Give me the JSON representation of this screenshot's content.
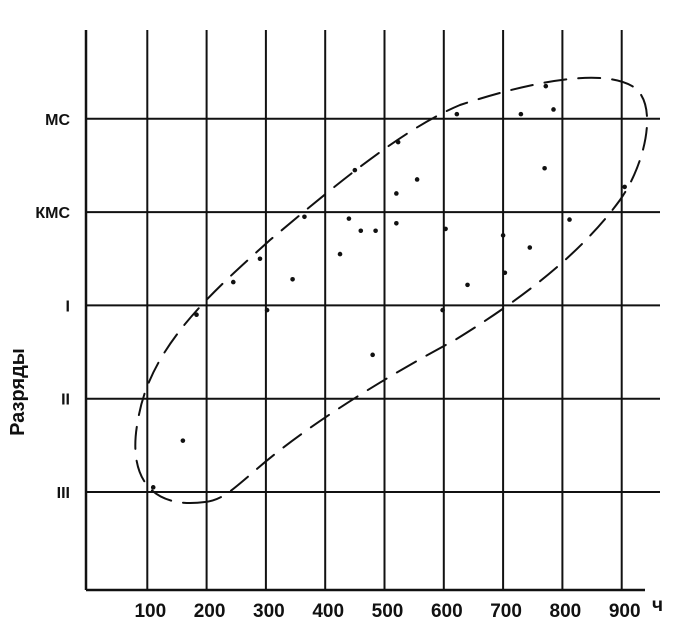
{
  "chart_data": {
    "type": "scatter",
    "title": "",
    "xlabel": "",
    "x_unit": "ч",
    "ylabel": "Разряды",
    "x_ticks": [
      100,
      200,
      300,
      400,
      500,
      600,
      700,
      800,
      900
    ],
    "x_tick_labels": [
      "100",
      "200",
      "300",
      "400",
      "500",
      "600",
      "700",
      "800",
      "900"
    ],
    "y_categories": [
      "III",
      "II",
      "I",
      "КМС",
      "МС"
    ],
    "xlim": [
      0,
      1000
    ],
    "ylim": [
      -1,
      4.2
    ],
    "grid": true,
    "points": [
      {
        "x": 160,
        "y": 0.55
      },
      {
        "x": 110,
        "y": 0.05
      },
      {
        "x": 183,
        "y": 1.9
      },
      {
        "x": 245,
        "y": 2.25
      },
      {
        "x": 290,
        "y": 2.5
      },
      {
        "x": 302,
        "y": 1.95
      },
      {
        "x": 345,
        "y": 2.28
      },
      {
        "x": 365,
        "y": 2.95
      },
      {
        "x": 425,
        "y": 2.55
      },
      {
        "x": 440,
        "y": 2.93
      },
      {
        "x": 450,
        "y": 3.45
      },
      {
        "x": 460,
        "y": 2.8
      },
      {
        "x": 480,
        "y": 1.47
      },
      {
        "x": 485,
        "y": 2.8
      },
      {
        "x": 520,
        "y": 3.2
      },
      {
        "x": 520,
        "y": 2.88
      },
      {
        "x": 523,
        "y": 3.75
      },
      {
        "x": 555,
        "y": 3.35
      },
      {
        "x": 598,
        "y": 1.95
      },
      {
        "x": 603,
        "y": 2.82
      },
      {
        "x": 622,
        "y": 4.05
      },
      {
        "x": 640,
        "y": 2.22
      },
      {
        "x": 700,
        "y": 2.75
      },
      {
        "x": 703,
        "y": 2.35
      },
      {
        "x": 730,
        "y": 4.05
      },
      {
        "x": 745,
        "y": 2.62
      },
      {
        "x": 770,
        "y": 3.47
      },
      {
        "x": 772,
        "y": 4.35
      },
      {
        "x": 785,
        "y": 4.1
      },
      {
        "x": 812,
        "y": 2.92
      },
      {
        "x": 905,
        "y": 3.27
      }
    ],
    "annotations": [
      "dashed ellipse enclosing the point cloud"
    ]
  }
}
